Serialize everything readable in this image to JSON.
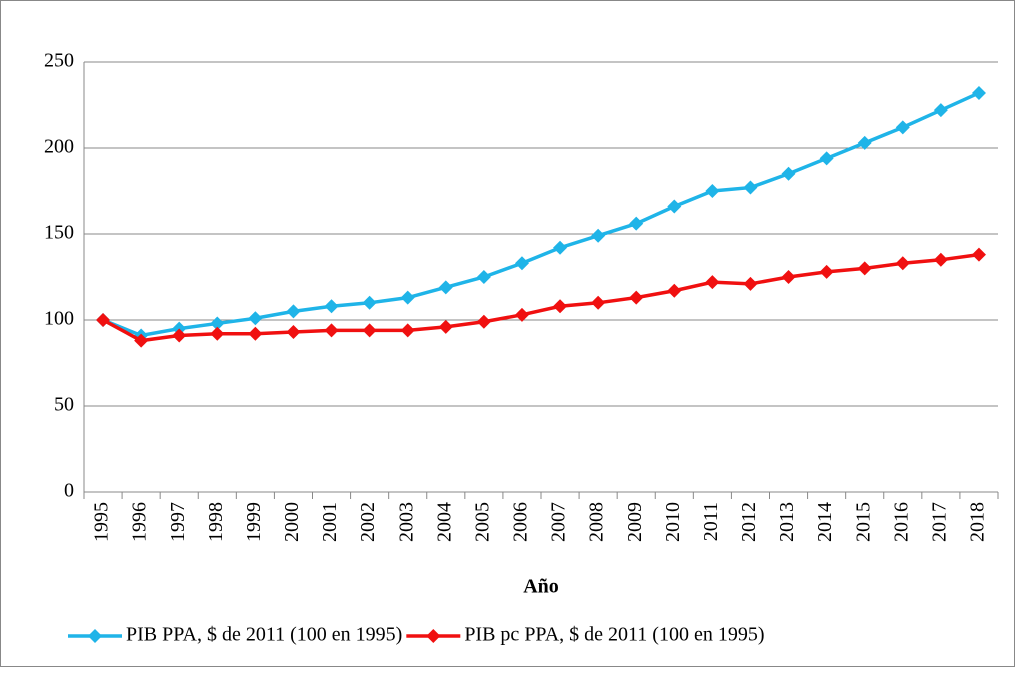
{
  "chart_data": {
    "type": "line",
    "x_label": "Año",
    "categories": [
      "1995",
      "1996",
      "1997",
      "1998",
      "1999",
      "2000",
      "2001",
      "2002",
      "2003",
      "2004",
      "2005",
      "2006",
      "2007",
      "2008",
      "2009",
      "2010",
      "2011",
      "2012",
      "2013",
      "2014",
      "2015",
      "2016",
      "2017",
      "2018"
    ],
    "series": [
      {
        "name": "PIB PPA, $ de 2011 (100 en 1995)",
        "color": "#1fb4e8",
        "values": [
          100,
          91,
          95,
          98,
          101,
          105,
          108,
          110,
          113,
          119,
          125,
          133,
          142,
          149,
          156,
          166,
          175,
          177,
          185,
          194,
          203,
          212,
          222,
          232
        ]
      },
      {
        "name": "PIB pc PPA, $ de 2011 (100 en 1995)",
        "color": "#f01010",
        "values": [
          100,
          88,
          91,
          92,
          92,
          93,
          94,
          94,
          94,
          96,
          99,
          103,
          108,
          110,
          113,
          117,
          122,
          121,
          125,
          128,
          130,
          133,
          135,
          138
        ]
      }
    ],
    "ylim": [
      0,
      250
    ],
    "yticks": [
      0,
      50,
      100,
      150,
      200,
      250
    ],
    "grid": true,
    "legend": "bottom"
  }
}
